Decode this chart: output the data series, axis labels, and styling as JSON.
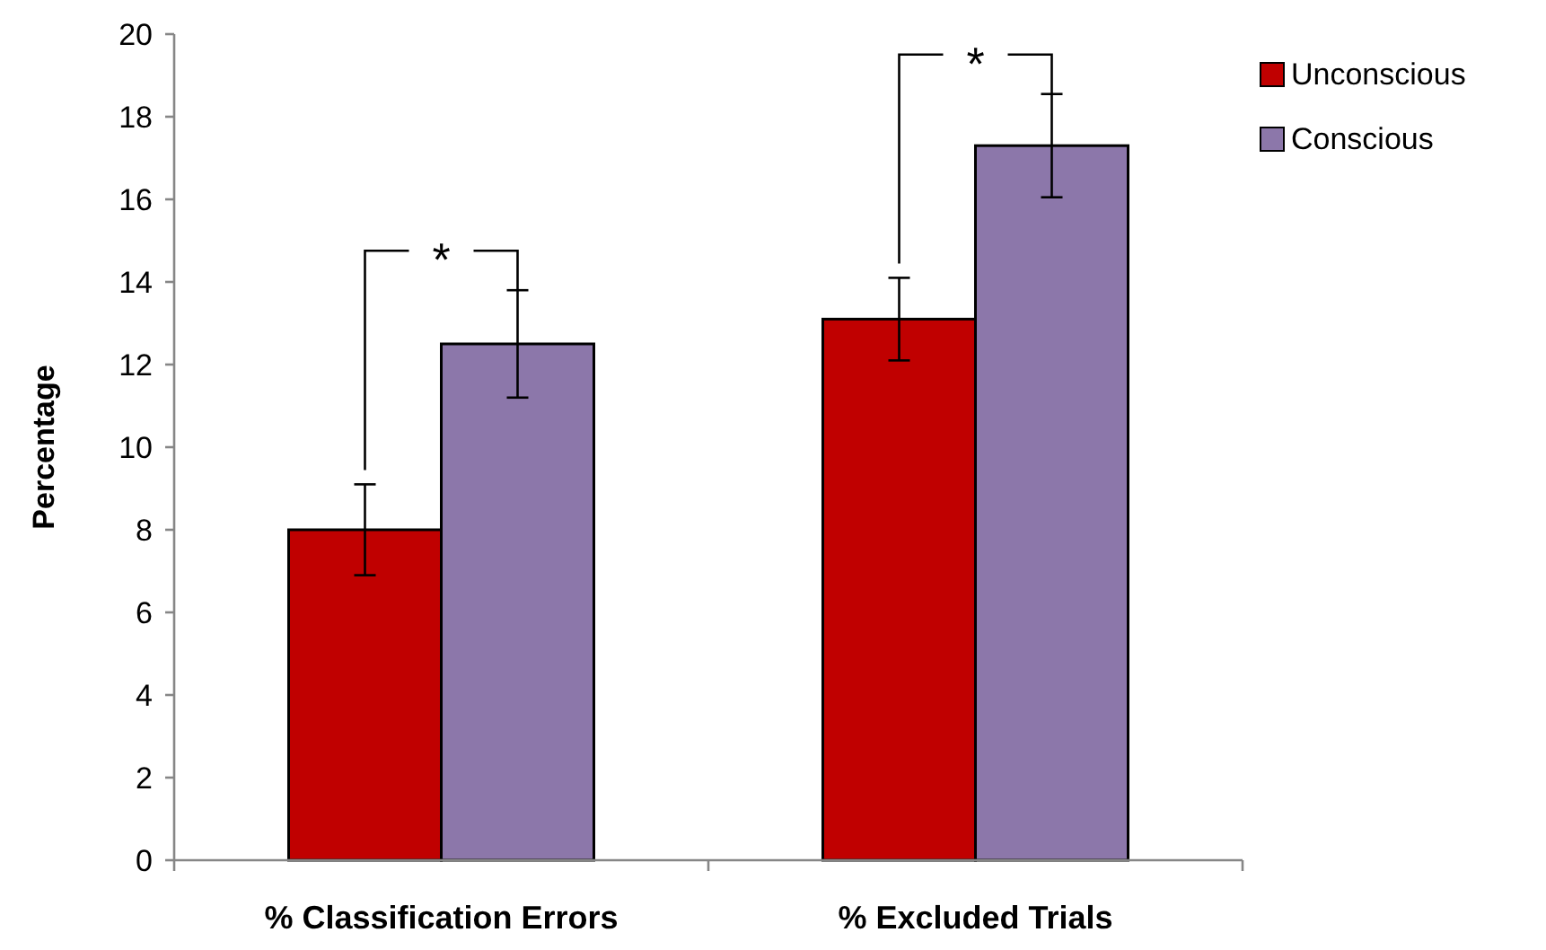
{
  "chart_data": {
    "type": "bar",
    "ylabel": "Percentage",
    "categories": [
      "% Classification Errors",
      "% Excluded Trials"
    ],
    "series": [
      {
        "name": "Unconscious",
        "color": "#c00000",
        "values": [
          8.0,
          13.1
        ],
        "errors": [
          1.1,
          1.0
        ]
      },
      {
        "name": "Conscious",
        "color": "#8c77aa",
        "values": [
          12.5,
          17.3
        ],
        "errors": [
          1.3,
          1.25
        ]
      }
    ],
    "ylim": [
      0,
      20
    ],
    "yticks": [
      0,
      2,
      4,
      6,
      8,
      10,
      12,
      14,
      16,
      18,
      20
    ],
    "legend": "top right",
    "grid": false,
    "annotations": [
      "*",
      "*"
    ]
  }
}
